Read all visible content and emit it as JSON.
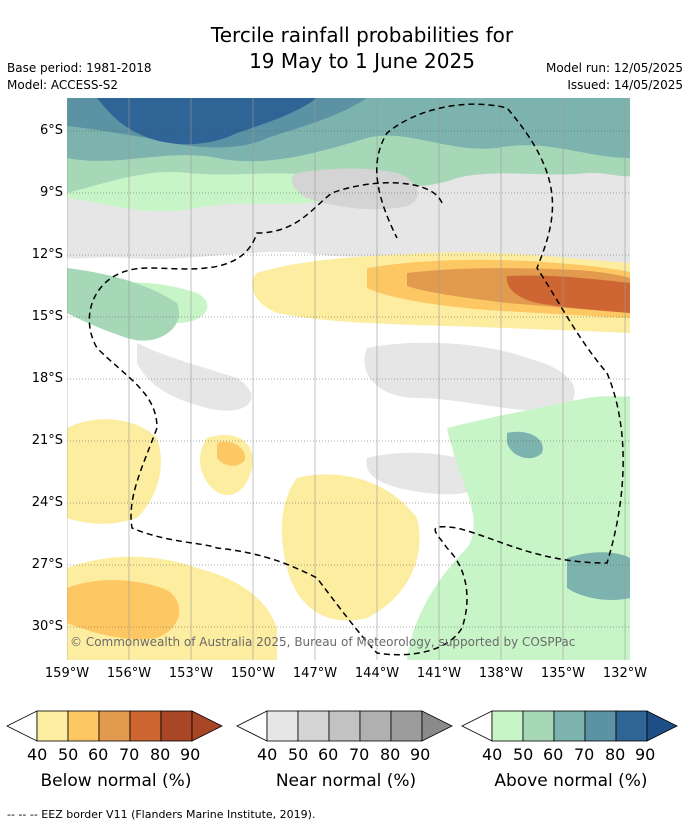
{
  "title_line1": "Tercile rainfall probabilities for",
  "title_line2": "19 May to 1 June 2025",
  "base_period": "Base period: 1981-2018",
  "model": "Model: ACCESS-S2",
  "model_run": "Model run: 12/05/2025",
  "issued": "Issued: 14/05/2025",
  "copyright": "© Commonwealth of Australia 2025, Bureau of Meteorology, supported by COSPPac",
  "lat_labels": [
    "6°S",
    "9°S",
    "12°S",
    "15°S",
    "18°S",
    "21°S",
    "24°S",
    "27°S",
    "30°S"
  ],
  "lon_labels": [
    "159°W",
    "156°W",
    "153°W",
    "150°W",
    "147°W",
    "144°W",
    "141°W",
    "138°W",
    "135°W",
    "132°W"
  ],
  "colorbars": [
    {
      "title": "Below normal (%)",
      "ticks": [
        "40",
        "50",
        "60",
        "70",
        "80",
        "90"
      ],
      "colors": [
        "#fdeda0",
        "#fdc863",
        "#e29a4e",
        "#cd6633",
        "#a84626",
        "#a84626"
      ]
    },
    {
      "title": "Near normal (%)",
      "ticks": [
        "40",
        "50",
        "60",
        "70",
        "80",
        "90"
      ],
      "colors": [
        "#e6e6e6",
        "#d4d4d4",
        "#c2c2c2",
        "#b0b0b0",
        "#9c9c9c",
        "#8a8a8a"
      ]
    },
    {
      "title": "Above normal (%)",
      "ticks": [
        "40",
        "50",
        "60",
        "70",
        "80",
        "90"
      ],
      "colors": [
        "#c8f5c8",
        "#a6d8b8",
        "#7cb3ae",
        "#5b93a4",
        "#2f6496",
        "#1d4e84"
      ]
    }
  ],
  "footnote": "--  --  -- EEZ border V11 (Flanders Marine Institute, 2019)."
}
